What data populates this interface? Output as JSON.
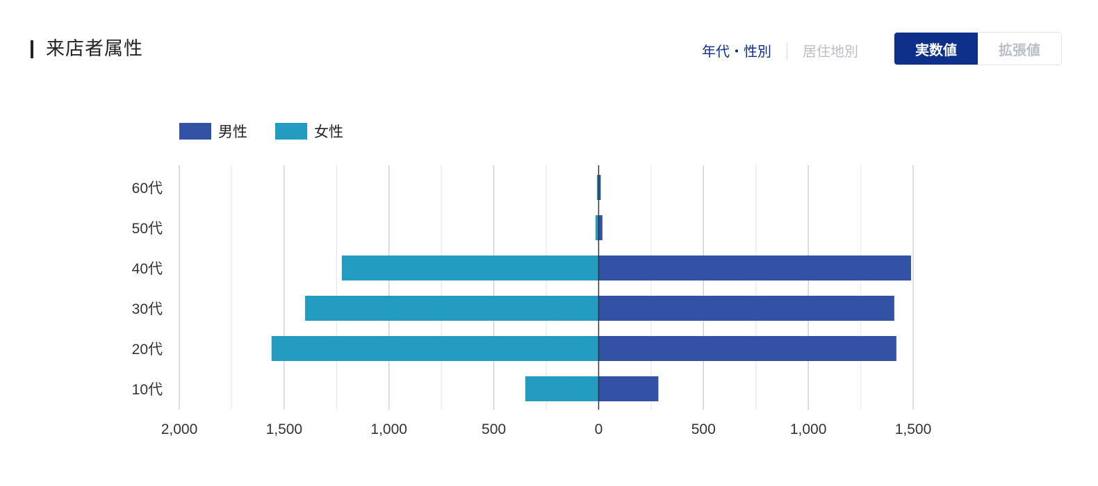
{
  "header": {
    "title": "来店者属性",
    "view_links": [
      {
        "label": "年代・性別",
        "active": true
      },
      {
        "label": "居住地別",
        "active": false
      }
    ],
    "toggle": [
      {
        "label": "実数値",
        "active": true
      },
      {
        "label": "拡張値",
        "active": false
      }
    ]
  },
  "colors": {
    "male": "#3352a5",
    "female": "#249cc2",
    "accent": "#0e2f8a",
    "grid": "#e2e2e2",
    "axis": "#333333"
  },
  "chart_data": {
    "type": "bar",
    "orientation": "horizontal-diverging",
    "categories": [
      "60代",
      "50代",
      "40代",
      "30代",
      "20代",
      "10代"
    ],
    "series": [
      {
        "name": "男性",
        "side": "right",
        "values": [
          10,
          18,
          1490,
          1410,
          1420,
          285
        ]
      },
      {
        "name": "女性",
        "side": "left",
        "values": [
          8,
          15,
          1225,
          1400,
          1560,
          350
        ]
      }
    ],
    "xlim": [
      -2000,
      1500
    ],
    "x_ticks": [
      -2000,
      -1500,
      -1000,
      -500,
      0,
      500,
      1000,
      1500
    ],
    "x_tick_labels": [
      "2,000",
      "1,500",
      "1,000",
      "500",
      "0",
      "500",
      "1,000",
      "1,500"
    ],
    "grid": true,
    "legend": "top-left"
  }
}
